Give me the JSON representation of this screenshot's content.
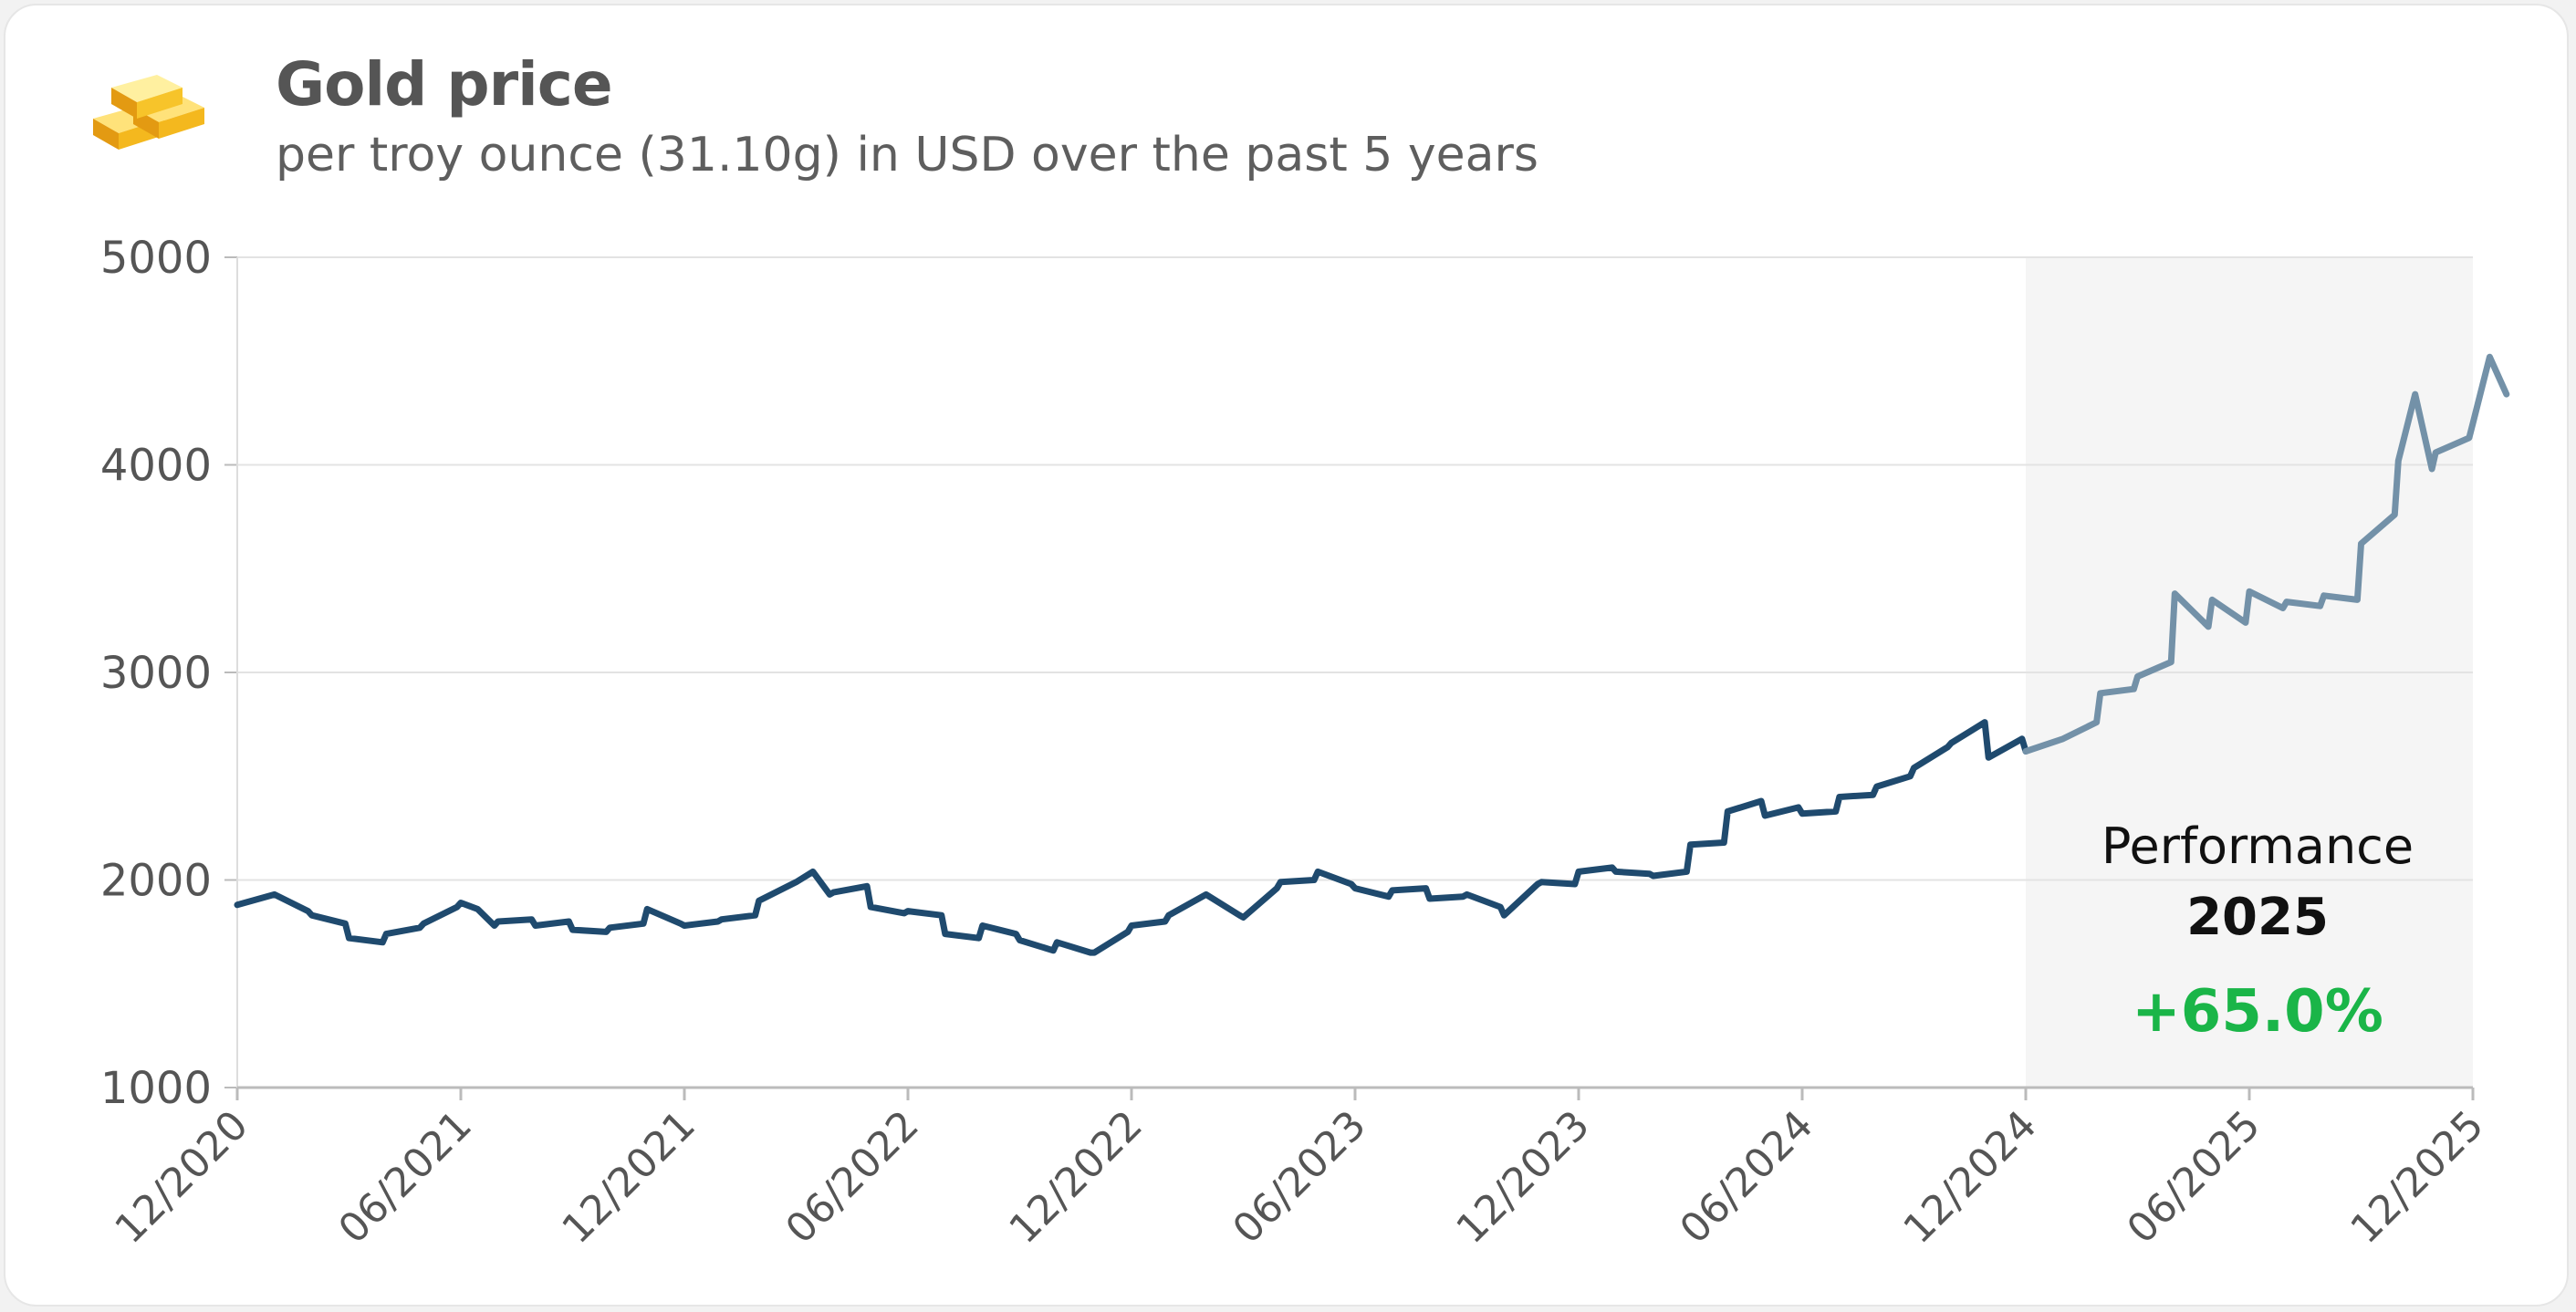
{
  "header": {
    "title": "Gold price",
    "subtitle": "per troy ounce (31.10g) in USD over the past 5 years",
    "logo_icon": "gold-bars-icon"
  },
  "performance": {
    "label": "Performance",
    "year": "2025",
    "value": "+65.0%"
  },
  "colors": {
    "line_history": "#1f4a6e",
    "line_highlight": "#7391a8",
    "highlight_band": "#f5f5f5",
    "grid": "#e3e3e3",
    "positive": "#1ab548"
  },
  "chart_data": {
    "type": "line",
    "title": "Gold price",
    "subtitle": "per troy ounce (31.10g) in USD over the past 5 years",
    "xlabel": "",
    "ylabel": "",
    "ylim": [
      1000,
      5000
    ],
    "yticks": [
      1000,
      2000,
      3000,
      4000,
      5000
    ],
    "xlim": [
      "2020-12",
      "2025-12"
    ],
    "xticks": [
      "12/2020",
      "06/2021",
      "12/2021",
      "06/2022",
      "12/2022",
      "06/2023",
      "12/2023",
      "06/2024",
      "12/2024",
      "06/2025",
      "12/2025"
    ],
    "grid": "horizontal",
    "highlight_period": {
      "from": "2024-12",
      "to": "2025-12",
      "label": "2025"
    },
    "series": [
      {
        "values": [
          [
            "2020-12",
            1880
          ],
          [
            "2021-01",
            1930
          ],
          [
            "2021-01",
            1850
          ],
          [
            "2021-02",
            1830
          ],
          [
            "2021-02",
            1790
          ],
          [
            "2021-03",
            1720
          ],
          [
            "2021-03",
            1700
          ],
          [
            "2021-04",
            1740
          ],
          [
            "2021-04",
            1770
          ],
          [
            "2021-05",
            1790
          ],
          [
            "2021-05",
            1870
          ],
          [
            "2021-06",
            1890
          ],
          [
            "2021-06",
            1860
          ],
          [
            "2021-06",
            1780
          ],
          [
            "2021-07",
            1800
          ],
          [
            "2021-07",
            1810
          ],
          [
            "2021-08",
            1780
          ],
          [
            "2021-08",
            1800
          ],
          [
            "2021-09",
            1760
          ],
          [
            "2021-09",
            1750
          ],
          [
            "2021-10",
            1770
          ],
          [
            "2021-10",
            1790
          ],
          [
            "2021-11",
            1860
          ],
          [
            "2021-11",
            1790
          ],
          [
            "2021-12",
            1780
          ],
          [
            "2021-12",
            1800
          ],
          [
            "2022-01",
            1810
          ],
          [
            "2022-01",
            1830
          ],
          [
            "2022-02",
            1900
          ],
          [
            "2022-03",
            1990
          ],
          [
            "2022-03",
            2040
          ],
          [
            "2022-03",
            1930
          ],
          [
            "2022-04",
            1940
          ],
          [
            "2022-04",
            1970
          ],
          [
            "2022-05",
            1870
          ],
          [
            "2022-05",
            1840
          ],
          [
            "2022-06",
            1850
          ],
          [
            "2022-06",
            1830
          ],
          [
            "2022-07",
            1740
          ],
          [
            "2022-07",
            1720
          ],
          [
            "2022-08",
            1780
          ],
          [
            "2022-08",
            1740
          ],
          [
            "2022-09",
            1710
          ],
          [
            "2022-09",
            1660
          ],
          [
            "2022-10",
            1700
          ],
          [
            "2022-10",
            1650
          ],
          [
            "2022-11",
            1650
          ],
          [
            "2022-11",
            1750
          ],
          [
            "2022-12",
            1780
          ],
          [
            "2022-12",
            1800
          ],
          [
            "2023-01",
            1830
          ],
          [
            "2023-01",
            1920
          ],
          [
            "2023-02",
            1930
          ],
          [
            "2023-02",
            1830
          ],
          [
            "2023-03",
            1820
          ],
          [
            "2023-03",
            1960
          ],
          [
            "2023-04",
            1990
          ],
          [
            "2023-04",
            2000
          ],
          [
            "2023-05",
            2040
          ],
          [
            "2023-05",
            1980
          ],
          [
            "2023-06",
            1960
          ],
          [
            "2023-06",
            1920
          ],
          [
            "2023-07",
            1950
          ],
          [
            "2023-07",
            1960
          ],
          [
            "2023-08",
            1910
          ],
          [
            "2023-08",
            1920
          ],
          [
            "2023-09",
            1930
          ],
          [
            "2023-09",
            1870
          ],
          [
            "2023-10",
            1830
          ],
          [
            "2023-10",
            1980
          ],
          [
            "2023-11",
            1990
          ],
          [
            "2023-11",
            1980
          ],
          [
            "2023-12",
            2040
          ],
          [
            "2023-12",
            2060
          ],
          [
            "2024-01",
            2040
          ],
          [
            "2024-01",
            2030
          ],
          [
            "2024-02",
            2020
          ],
          [
            "2024-02",
            2040
          ],
          [
            "2024-03",
            2170
          ],
          [
            "2024-03",
            2180
          ],
          [
            "2024-04",
            2330
          ],
          [
            "2024-04",
            2380
          ],
          [
            "2024-05",
            2310
          ],
          [
            "2024-05",
            2350
          ],
          [
            "2024-06",
            2320
          ],
          [
            "2024-06",
            2330
          ],
          [
            "2024-07",
            2400
          ],
          [
            "2024-07",
            2410
          ],
          [
            "2024-08",
            2450
          ],
          [
            "2024-08",
            2500
          ],
          [
            "2024-09",
            2540
          ],
          [
            "2024-09",
            2640
          ],
          [
            "2024-10",
            2660
          ],
          [
            "2024-10",
            2760
          ],
          [
            "2024-11",
            2590
          ],
          [
            "2024-11",
            2680
          ],
          [
            "2024-12",
            2620
          ]
        ]
      },
      {
        "values": [
          [
            "2024-12",
            2620
          ],
          [
            "2025-01",
            2680
          ],
          [
            "2025-01",
            2760
          ],
          [
            "2025-02",
            2900
          ],
          [
            "2025-02",
            2920
          ],
          [
            "2025-03",
            2980
          ],
          [
            "2025-03",
            3050
          ],
          [
            "2025-04",
            3380
          ],
          [
            "2025-04",
            3220
          ],
          [
            "2025-05",
            3350
          ],
          [
            "2025-05",
            3240
          ],
          [
            "2025-06",
            3390
          ],
          [
            "2025-06",
            3310
          ],
          [
            "2025-07",
            3340
          ],
          [
            "2025-07",
            3320
          ],
          [
            "2025-08",
            3370
          ],
          [
            "2025-08",
            3350
          ],
          [
            "2025-09",
            3620
          ],
          [
            "2025-09",
            3760
          ],
          [
            "2025-10",
            4020
          ],
          [
            "2025-10",
            4340
          ],
          [
            "2025-10",
            3980
          ],
          [
            "2025-11",
            4060
          ],
          [
            "2025-11",
            4130
          ],
          [
            "2025-12",
            4200
          ],
          [
            "2025-12",
            4520
          ],
          [
            "2025-12",
            4340
          ]
        ]
      }
    ]
  }
}
